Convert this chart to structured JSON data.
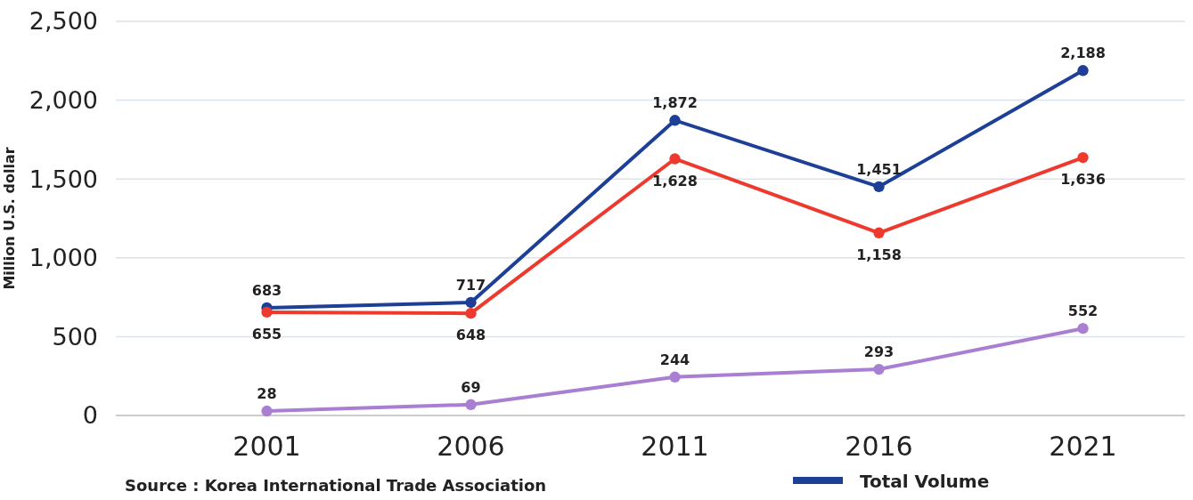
{
  "chart_data": {
    "type": "line",
    "ylabel": "Million U.S. dollar",
    "categories": [
      "2001",
      "2006",
      "2011",
      "2016",
      "2021"
    ],
    "series": [
      {
        "name": "Total Volume",
        "color": "#1d3f96",
        "values": [
          683,
          717,
          1872,
          1451,
          2188
        ],
        "value_labels": [
          "683",
          "717",
          "1,872",
          "1,451",
          "2,188"
        ]
      },
      {
        "color": "#ee3a2e",
        "values": [
          655,
          648,
          1628,
          1158,
          1636
        ],
        "value_labels": [
          "655",
          "648",
          "1,628",
          "1,158",
          "1,636"
        ]
      },
      {
        "color": "#a97fd2",
        "values": [
          28,
          69,
          244,
          293,
          552
        ],
        "value_labels": [
          "28",
          "69",
          "244",
          "293",
          "552"
        ]
      }
    ],
    "ylim": [
      0,
      2500
    ],
    "yticks": [
      0,
      {
        "value": 500,
        "label": "500"
      },
      {
        "value": 1000,
        "label": "1,000"
      },
      {
        "value": 1500,
        "label": "1,500"
      },
      {
        "value": 2000,
        "label": "2,000"
      },
      {
        "value": 2500,
        "label": "2,500"
      }
    ],
    "grid": "y",
    "marker": "circle",
    "line_style": "solid",
    "legend": "bottom",
    "annotations": [
      "Source : Korea International Trade Association"
    ]
  }
}
